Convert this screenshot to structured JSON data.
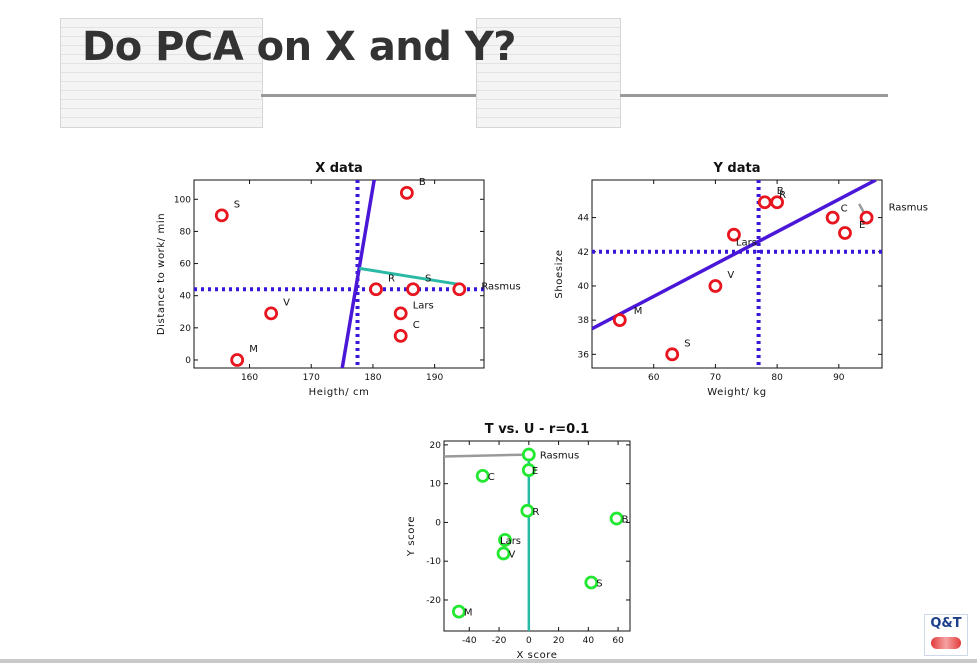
{
  "slide": {
    "title": "Do PCA on X and Y?"
  },
  "colors": {
    "marker": "#e8141e",
    "marker_green": "#22e832",
    "pc_line": "#4a17d8",
    "dotted": "#3a17d8",
    "residual": "#2ab9a5",
    "grey_line": "#9a9a9a"
  },
  "chart_data": [
    {
      "type": "scatter",
      "title": "X data",
      "xlabel": "Heigth/ cm",
      "ylabel": "Distance to work/ min",
      "xlim": [
        151,
        198
      ],
      "ylim": [
        -5,
        112
      ],
      "xticks": [
        160,
        170,
        180,
        190
      ],
      "yticks": [
        0,
        20,
        40,
        60,
        80,
        100
      ],
      "points": [
        {
          "label": "S",
          "x": 155.5,
          "y": 90
        },
        {
          "label": "B",
          "x": 185.5,
          "y": 104
        },
        {
          "label": "V",
          "x": 163.5,
          "y": 29
        },
        {
          "label": "M",
          "x": 158,
          "y": 0
        },
        {
          "label": "R",
          "x": 180.5,
          "y": 44
        },
        {
          "label": "S",
          "x": 186.5,
          "y": 44
        },
        {
          "label": "Rasmus",
          "x": 194,
          "y": 44
        },
        {
          "label": "Lars",
          "x": 184.5,
          "y": 29
        },
        {
          "label": "C",
          "x": 184.5,
          "y": 15
        }
      ],
      "mean": {
        "x": 177.5,
        "y": 44
      },
      "pc_line": [
        {
          "x": 174.8,
          "y": -10
        },
        {
          "x": 180.2,
          "y": 112
        }
      ],
      "residual": [
        {
          "x": 177.8,
          "y": 57
        },
        {
          "x": 194,
          "y": 47
        }
      ]
    },
    {
      "type": "scatter",
      "title": "Y data",
      "xlabel": "Weight/ kg",
      "ylabel": "Shoesize",
      "xlim": [
        50,
        97
      ],
      "ylim": [
        35.2,
        46.2
      ],
      "xticks": [
        60,
        70,
        80,
        90
      ],
      "yticks": [
        36,
        38,
        40,
        42,
        44
      ],
      "ytick_labels": [
        "36",
        "38",
        "40",
        "42",
        "44"
      ],
      "points": [
        {
          "label": "B",
          "x": 78,
          "y": 44.9
        },
        {
          "label": "R",
          "x": 80,
          "y": 44.9
        },
        {
          "label": "C",
          "x": 89,
          "y": 44
        },
        {
          "label": "Rasmus",
          "x": 94.5,
          "y": 44
        },
        {
          "label": "E",
          "x": 91,
          "y": 43.1
        },
        {
          "label": "Lars",
          "x": 73,
          "y": 43
        },
        {
          "label": "V",
          "x": 70,
          "y": 40
        },
        {
          "label": "M",
          "x": 54.5,
          "y": 38
        },
        {
          "label": "S",
          "x": 63,
          "y": 36
        }
      ],
      "mean": {
        "x": 77,
        "y": 42
      },
      "pc_line": [
        {
          "x": 50,
          "y": 37.5
        },
        {
          "x": 96,
          "y": 46.2
        }
      ],
      "residual": [
        {
          "x": 94.5,
          "y": 44
        },
        {
          "x": 93.3,
          "y": 44.8
        }
      ]
    },
    {
      "type": "scatter",
      "title": "T vs. U - r=0.1",
      "xlabel": "X score",
      "ylabel": "Y score",
      "xlim": [
        -57,
        68
      ],
      "ylim": [
        -28,
        21
      ],
      "xticks": [
        -40,
        -20,
        0,
        20,
        40,
        60
      ],
      "yticks": [
        -20,
        -10,
        0,
        10,
        20
      ],
      "points": [
        {
          "label": "Rasmus",
          "x": 0,
          "y": 17.5
        },
        {
          "label": "E",
          "x": 0,
          "y": 13.5
        },
        {
          "label": "C",
          "x": -31,
          "y": 12
        },
        {
          "label": "R",
          "x": -1,
          "y": 3
        },
        {
          "label": "B",
          "x": 59,
          "y": 1
        },
        {
          "label": "Lars",
          "x": -16,
          "y": -4.5
        },
        {
          "label": "V",
          "x": -17,
          "y": -8
        },
        {
          "label": "S",
          "x": 42,
          "y": -15.5
        },
        {
          "label": "M",
          "x": -47,
          "y": -23
        }
      ],
      "residual": [
        {
          "x": -57,
          "y": 17
        },
        {
          "x": 0,
          "y": 17.5
        }
      ],
      "axis_line": [
        {
          "x": 0,
          "y": 17.5
        },
        {
          "x": 0,
          "y": -28
        }
      ]
    }
  ],
  "logo": {
    "text": "Q&T"
  }
}
